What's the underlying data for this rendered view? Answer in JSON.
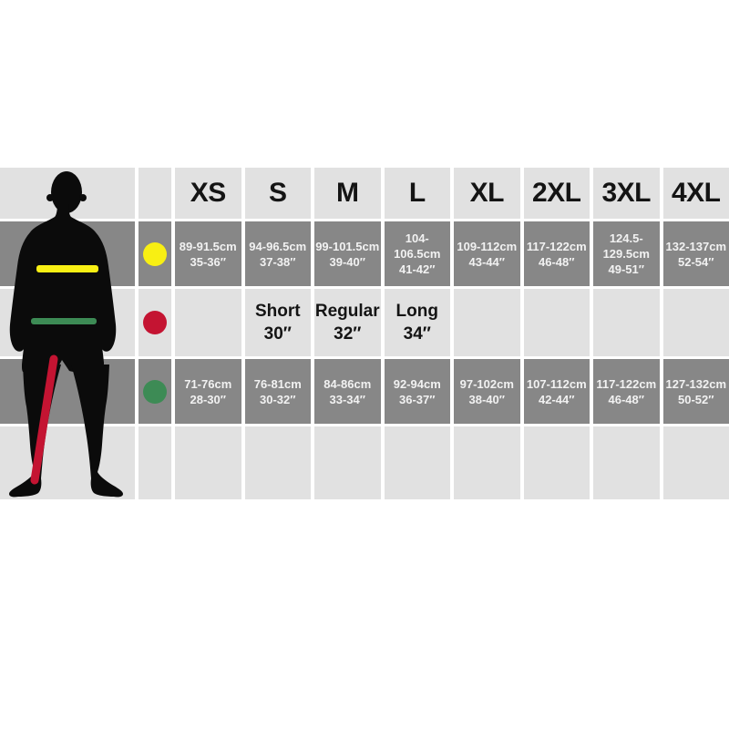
{
  "page": {
    "background": "#ffffff"
  },
  "colors": {
    "row_dark": "#878787",
    "row_light": "#e1e1e1",
    "silhouette": "#0b0b0b",
    "text_on_dark": "#f2f2f2",
    "text_on_light": "#141414",
    "chest_marker": "#f8ef13",
    "inside_leg_marker": "#c41432",
    "waist_marker": "#3d8b55"
  },
  "chart_data": {
    "type": "table",
    "description": "Garment size chart with body silhouette; colored dots match measurement lines on the figure (yellow = chest, red = inside leg, green = waist).",
    "columns": [
      "XS",
      "S",
      "M",
      "L",
      "XL",
      "2XL",
      "3XL",
      "4XL"
    ],
    "rows": [
      {
        "measure": "chest",
        "marker_color": "#f8ef13",
        "cells": [
          [
            "89-91.5cm",
            "35-36″"
          ],
          [
            "94-96.5cm",
            "37-38″"
          ],
          [
            "99-101.5cm",
            "39-40″"
          ],
          [
            "104-106.5cm",
            "41-42″"
          ],
          [
            "109-112cm",
            "43-44″"
          ],
          [
            "117-122cm",
            "46-48″"
          ],
          [
            "124.5-129.5cm",
            "49-51″"
          ],
          [
            "132-137cm",
            "52-54″"
          ]
        ]
      },
      {
        "measure": "inside-leg",
        "marker_color": "#c41432",
        "cells": [
          [
            "",
            ""
          ],
          [
            "Short",
            "30″"
          ],
          [
            "Regular",
            "32″"
          ],
          [
            "Long",
            "34″"
          ],
          [
            "",
            ""
          ],
          [
            "",
            ""
          ],
          [
            "",
            ""
          ],
          [
            "",
            ""
          ]
        ]
      },
      {
        "measure": "waist",
        "marker_color": "#3d8b55",
        "cells": [
          [
            "71-76cm",
            "28-30″"
          ],
          [
            "76-81cm",
            "30-32″"
          ],
          [
            "84-86cm",
            "33-34″"
          ],
          [
            "92-94cm",
            "36-37″"
          ],
          [
            "97-102cm",
            "38-40″"
          ],
          [
            "107-112cm",
            "42-44″"
          ],
          [
            "117-122cm",
            "46-48″"
          ],
          [
            "127-132cm",
            "50-52″"
          ]
        ]
      },
      {
        "measure": "",
        "marker_color": "",
        "cells": [
          [
            "",
            ""
          ],
          [
            "",
            ""
          ],
          [
            "",
            ""
          ],
          [
            "",
            ""
          ],
          [
            "",
            ""
          ],
          [
            "",
            ""
          ],
          [
            "",
            ""
          ],
          [
            "",
            ""
          ]
        ]
      }
    ]
  }
}
